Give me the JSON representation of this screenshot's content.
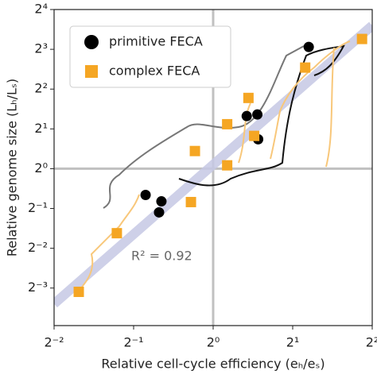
{
  "chart_data": {
    "type": "scatter",
    "xlabel": "Relative cell-cycle efficiency (eₕ/eₛ)",
    "ylabel": "Relative genome size (Lₕ/Lₛ)",
    "log_scale": true,
    "xlim": [
      0.25,
      4
    ],
    "ylim": [
      0.065,
      16
    ],
    "xticks": [
      {
        "value": 0.25,
        "label": "2⁻²"
      },
      {
        "value": 0.5,
        "label": "2⁻¹"
      },
      {
        "value": 1,
        "label": "2⁰"
      },
      {
        "value": 2,
        "label": "2¹"
      },
      {
        "value": 4,
        "label": "2²"
      }
    ],
    "yticks": [
      {
        "value": 0.125,
        "label": "2⁻³"
      },
      {
        "value": 0.25,
        "label": "2⁻²"
      },
      {
        "value": 0.5,
        "label": "2⁻¹"
      },
      {
        "value": 1,
        "label": "2⁰"
      },
      {
        "value": 2,
        "label": "2¹"
      },
      {
        "value": 4,
        "label": "2²"
      },
      {
        "value": 8,
        "label": "2³"
      },
      {
        "value": 16,
        "label": "2⁴"
      }
    ],
    "reference_lines": {
      "x": [
        1
      ],
      "y": [
        1
      ],
      "color": "#c0c0c0"
    },
    "fit_line": {
      "x": [
        0.25,
        4
      ],
      "y": [
        0.095,
        12.1
      ],
      "color": "#c5c8e4"
    },
    "annotation": "R² = 0.92",
    "legend": "upper left",
    "series": [
      {
        "name": "primitive FECA",
        "color": "#000000",
        "marker": "circle",
        "x": [
          2.3,
          1.34,
          1.47,
          1.48,
          0.555,
          0.637,
          0.624
        ],
        "values": [
          8.34,
          2.5,
          2.57,
          1.67,
          0.633,
          0.566,
          0.467
        ]
      },
      {
        "name": "complex FECA",
        "color": "#f5a623",
        "marker": "square",
        "x": [
          3.66,
          2.23,
          1.36,
          1.13,
          1.43,
          0.853,
          1.13,
          0.824,
          0.432,
          0.31
        ],
        "values": [
          9.58,
          5.82,
          3.43,
          2.17,
          1.77,
          1.36,
          1.06,
          0.559,
          0.325,
          0.117
        ]
      }
    ]
  }
}
